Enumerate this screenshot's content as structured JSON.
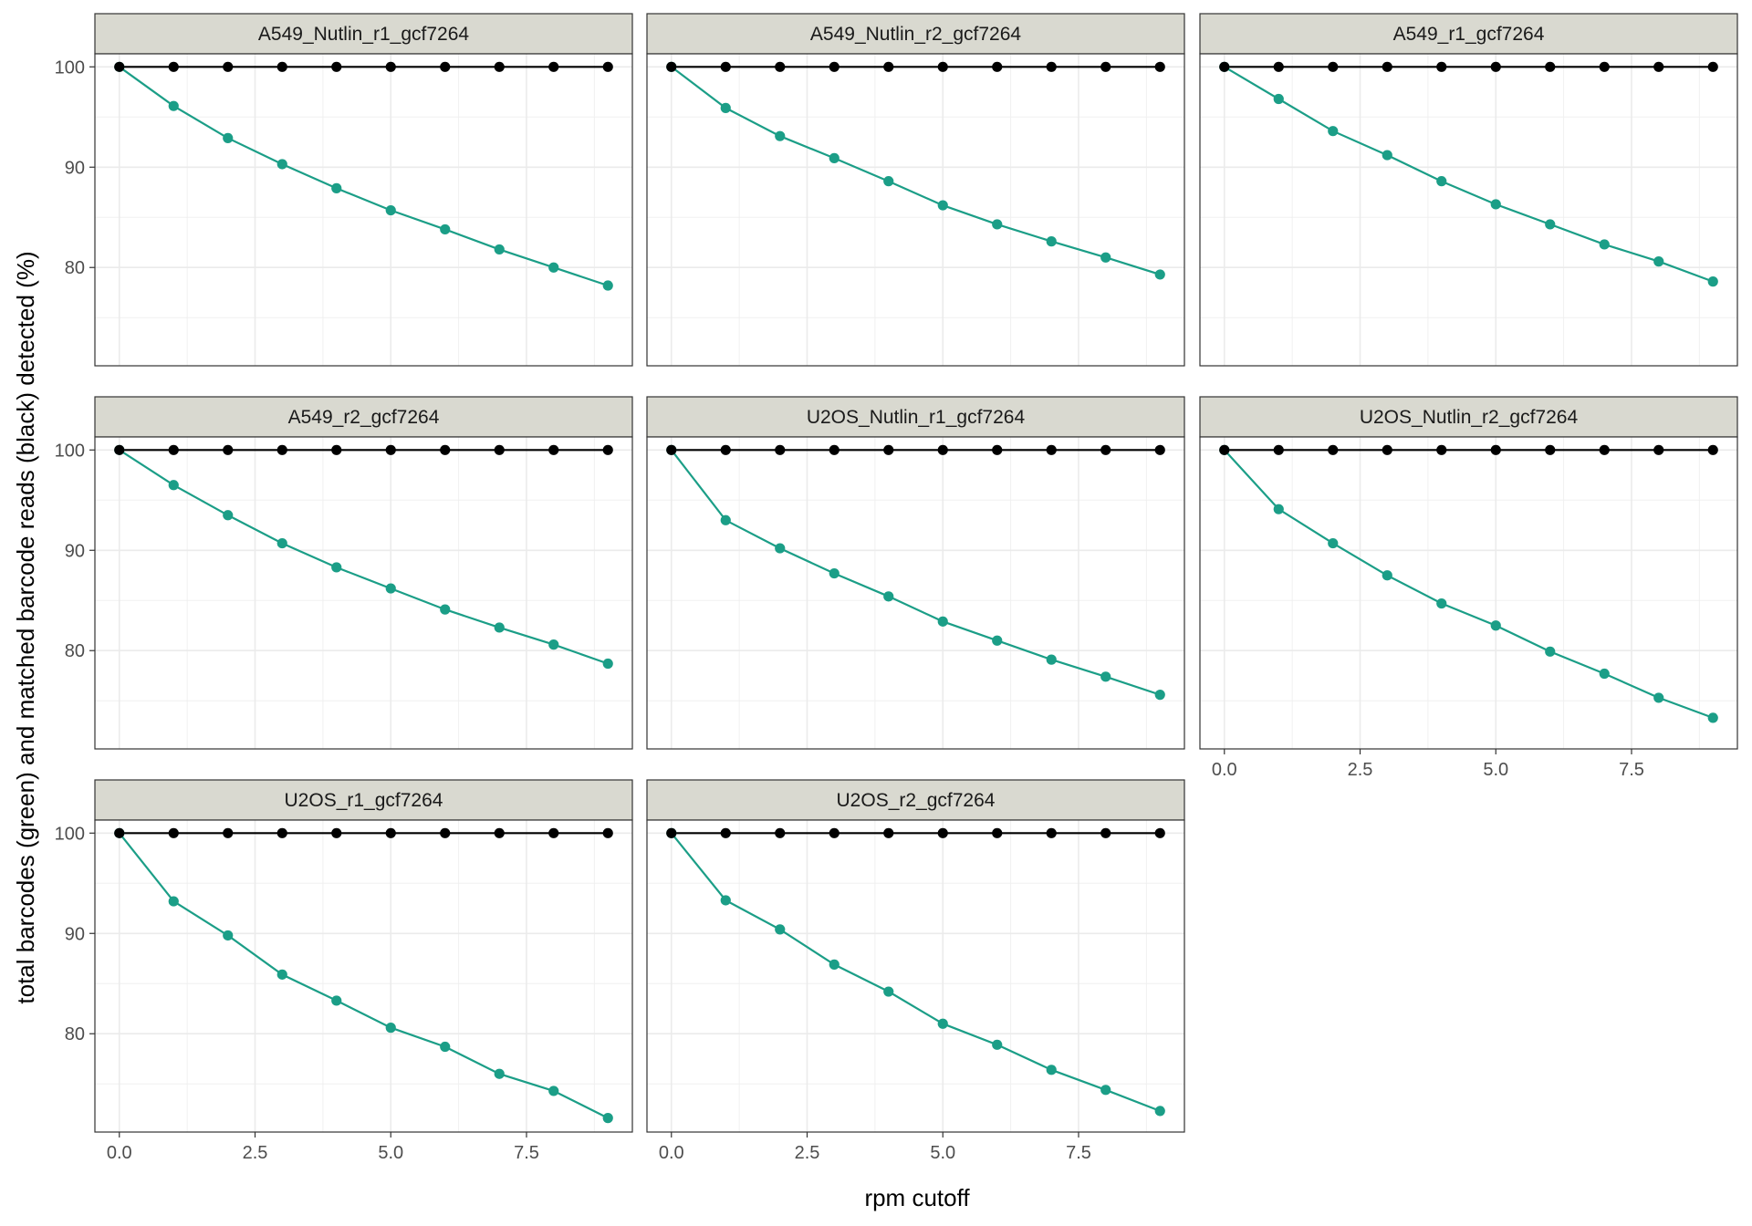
{
  "chart_data": {
    "type": "line",
    "xlabel": "rpm cutoff",
    "ylabel": "total barcodes (green) and matched barcode reads (black) detected (%)",
    "xlim": [
      -0.45,
      9.45
    ],
    "ylim": [
      70.2,
      101.3
    ],
    "x_ticks": [
      0,
      2.5,
      5,
      7.5
    ],
    "x_tick_labels": [
      "0.0",
      "2.5",
      "5.0",
      "7.5"
    ],
    "y_ticks": [
      80,
      90,
      100
    ],
    "y_tick_labels": [
      "80",
      "90",
      "100"
    ],
    "grid": true,
    "colors": {
      "green": "#1b9e87",
      "black": "#000000",
      "strip_fill": "#d9d9d0"
    },
    "x": [
      0,
      1,
      2,
      3,
      4,
      5,
      6,
      7,
      8,
      9
    ],
    "panels": [
      {
        "title": "A549_Nutlin_r1_gcf7264",
        "green": [
          100,
          96.1,
          92.9,
          90.3,
          87.9,
          85.7,
          83.8,
          81.8,
          80.0,
          78.2
        ],
        "black": [
          100,
          100,
          100,
          100,
          100,
          100,
          100,
          100,
          100,
          100
        ]
      },
      {
        "title": "A549_Nutlin_r2_gcf7264",
        "green": [
          100,
          95.9,
          93.1,
          90.9,
          88.6,
          86.2,
          84.3,
          82.6,
          81.0,
          79.3
        ],
        "black": [
          100,
          100,
          100,
          100,
          100,
          100,
          100,
          100,
          100,
          100
        ]
      },
      {
        "title": "A549_r1_gcf7264",
        "green": [
          100,
          96.8,
          93.6,
          91.2,
          88.6,
          86.3,
          84.3,
          82.3,
          80.6,
          78.6
        ],
        "black": [
          100,
          100,
          100,
          100,
          100,
          100,
          100,
          100,
          100,
          100
        ]
      },
      {
        "title": "A549_r2_gcf7264",
        "green": [
          100,
          96.5,
          93.5,
          90.7,
          88.3,
          86.2,
          84.1,
          82.3,
          80.6,
          78.7
        ],
        "black": [
          100,
          100,
          100,
          100,
          100,
          100,
          100,
          100,
          100,
          100
        ]
      },
      {
        "title": "U2OS_Nutlin_r1_gcf7264",
        "green": [
          100,
          93.0,
          90.2,
          87.7,
          85.4,
          82.9,
          81.0,
          79.1,
          77.4,
          75.6
        ],
        "black": [
          100,
          100,
          100,
          100,
          100,
          100,
          100,
          100,
          100,
          100
        ]
      },
      {
        "title": "U2OS_Nutlin_r2_gcf7264",
        "green": [
          100,
          94.1,
          90.7,
          87.5,
          84.7,
          82.5,
          79.9,
          77.7,
          75.3,
          73.3
        ],
        "black": [
          100,
          100,
          100,
          100,
          100,
          100,
          100,
          100,
          100,
          100
        ]
      },
      {
        "title": "U2OS_r1_gcf7264",
        "green": [
          100,
          93.2,
          89.8,
          85.9,
          83.3,
          80.6,
          78.7,
          76.0,
          74.3,
          71.6
        ],
        "black": [
          100,
          100,
          100,
          100,
          100,
          100,
          100,
          100,
          100,
          100
        ]
      },
      {
        "title": "U2OS_r2_gcf7264",
        "green": [
          100,
          93.3,
          90.4,
          86.9,
          84.2,
          81.0,
          78.9,
          76.4,
          74.4,
          72.3
        ],
        "black": [
          100,
          100,
          100,
          100,
          100,
          100,
          100,
          100,
          100,
          100
        ]
      }
    ]
  }
}
